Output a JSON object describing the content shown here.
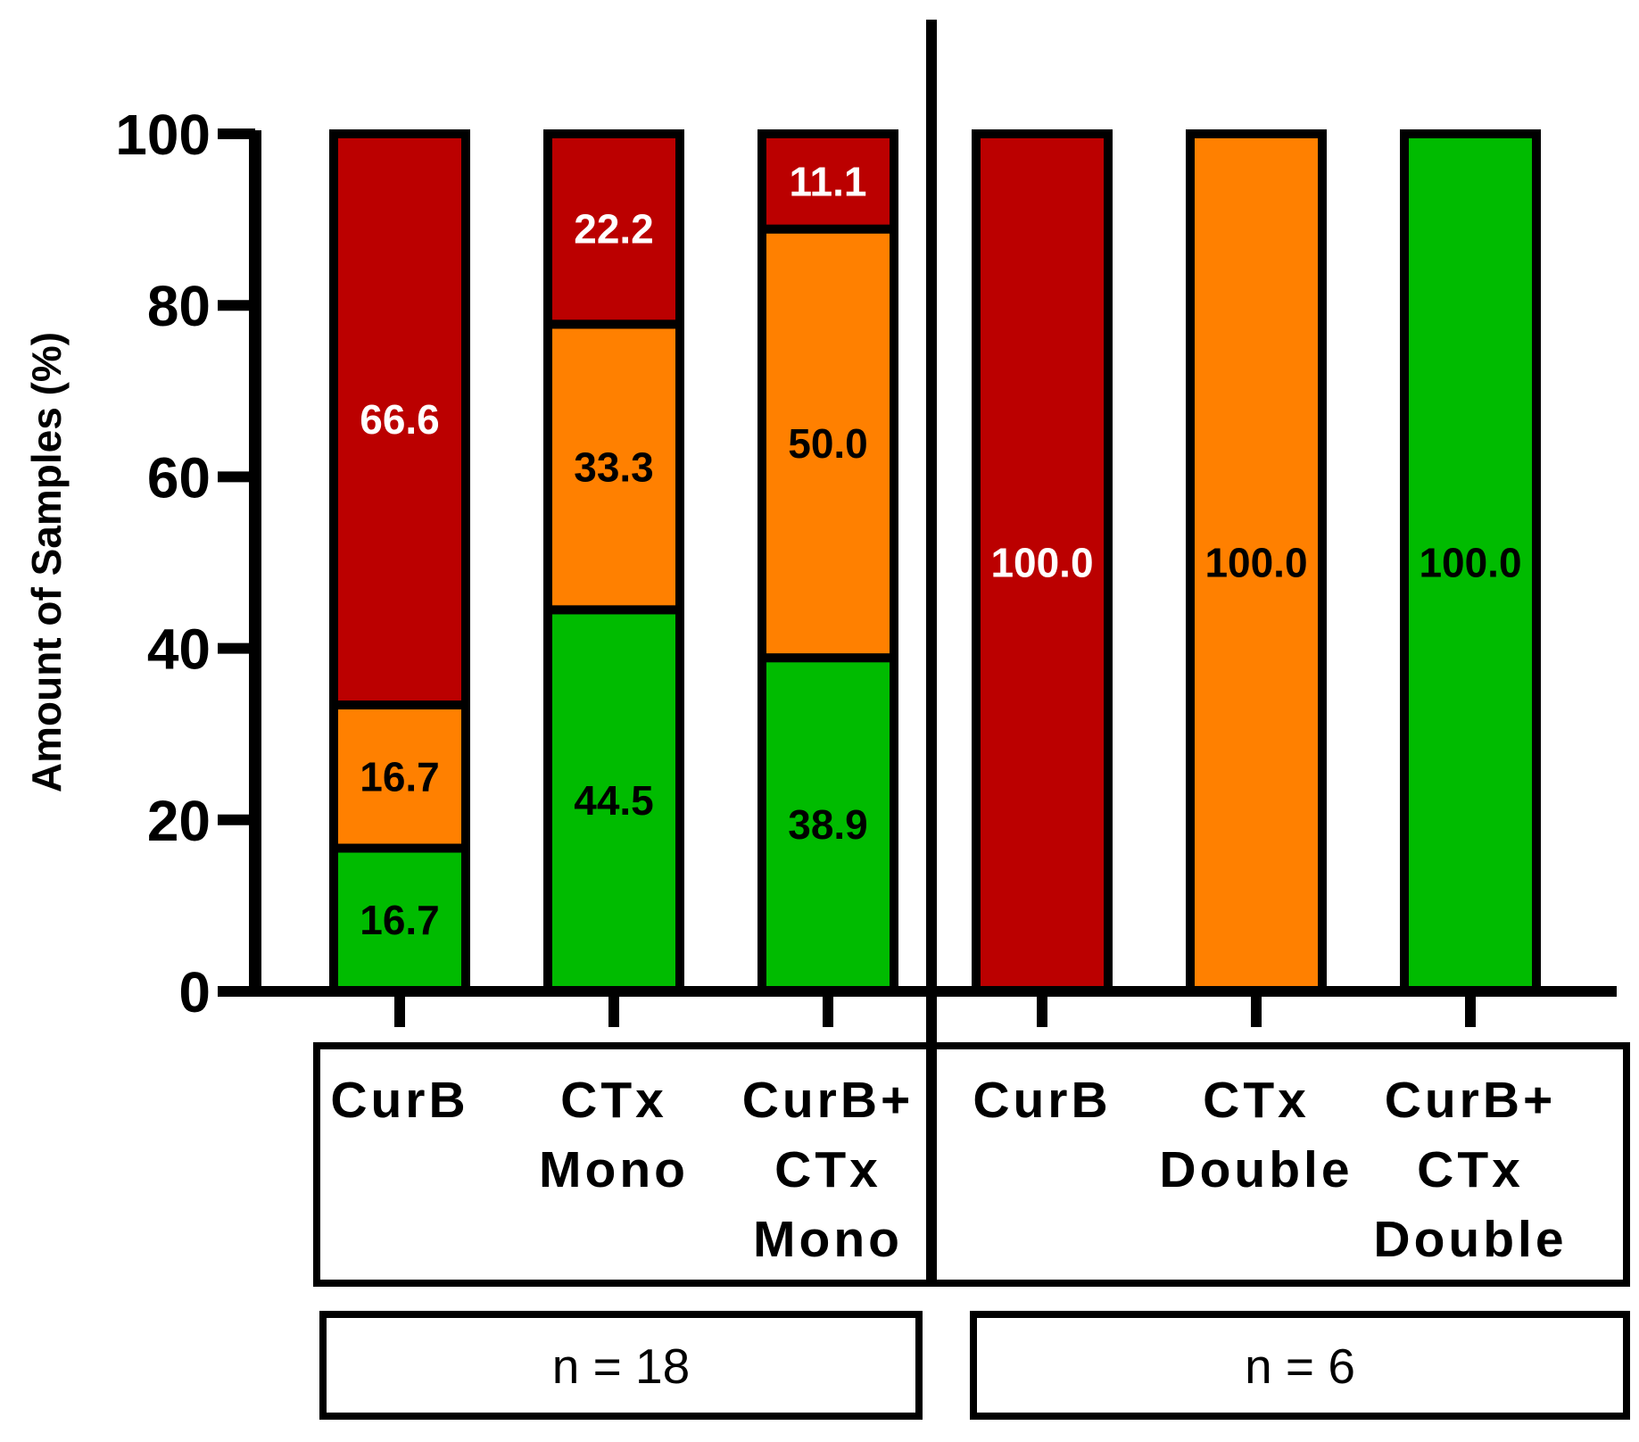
{
  "chart_data": {
    "type": "bar",
    "stacked": true,
    "ylabel": "Amount of Samples (%)",
    "xlabel": "",
    "ylim": [
      0,
      100
    ],
    "yticks": [
      0,
      20,
      40,
      60,
      80,
      100
    ],
    "colors": {
      "red": "#bb0000",
      "orange": "#ff8000",
      "green": "#00bb00"
    },
    "bars": [
      {
        "category": [
          "CurB"
        ],
        "segments": [
          {
            "color": "green",
            "value": 16.7,
            "label": "16.7",
            "text_color": "#000000"
          },
          {
            "color": "orange",
            "value": 16.7,
            "label": "16.7",
            "text_color": "#000000"
          },
          {
            "color": "red",
            "value": 66.6,
            "label": "66.6",
            "text_color": "#ffffff"
          }
        ]
      },
      {
        "category": [
          "CTx",
          "Mono"
        ],
        "segments": [
          {
            "color": "green",
            "value": 44.5,
            "label": "44.5",
            "text_color": "#000000"
          },
          {
            "color": "orange",
            "value": 33.3,
            "label": "33.3",
            "text_color": "#000000"
          },
          {
            "color": "red",
            "value": 22.2,
            "label": "22.2",
            "text_color": "#ffffff"
          }
        ]
      },
      {
        "category": [
          "CurB+",
          "CTx",
          "Mono"
        ],
        "segments": [
          {
            "color": "green",
            "value": 38.9,
            "label": "38.9",
            "text_color": "#000000"
          },
          {
            "color": "orange",
            "value": 50.0,
            "label": "50.0",
            "text_color": "#000000"
          },
          {
            "color": "red",
            "value": 11.1,
            "label": "11.1",
            "text_color": "#ffffff"
          }
        ]
      },
      {
        "category": [
          "CurB"
        ],
        "segments": [
          {
            "color": "red",
            "value": 100.0,
            "label": "100.0",
            "text_color": "#ffffff"
          }
        ]
      },
      {
        "category": [
          "CTx",
          "Double"
        ],
        "segments": [
          {
            "color": "orange",
            "value": 100.0,
            "label": "100.0",
            "text_color": "#000000"
          }
        ]
      },
      {
        "category": [
          "CurB+",
          "CTx",
          "Double"
        ],
        "segments": [
          {
            "color": "green",
            "value": 100.0,
            "label": "100.0",
            "text_color": "#000000"
          }
        ]
      }
    ],
    "groups": [
      {
        "bars": [
          0,
          1,
          2
        ],
        "n_label": "n = 18"
      },
      {
        "bars": [
          3,
          4,
          5
        ],
        "n_label": "n = 6"
      }
    ]
  }
}
